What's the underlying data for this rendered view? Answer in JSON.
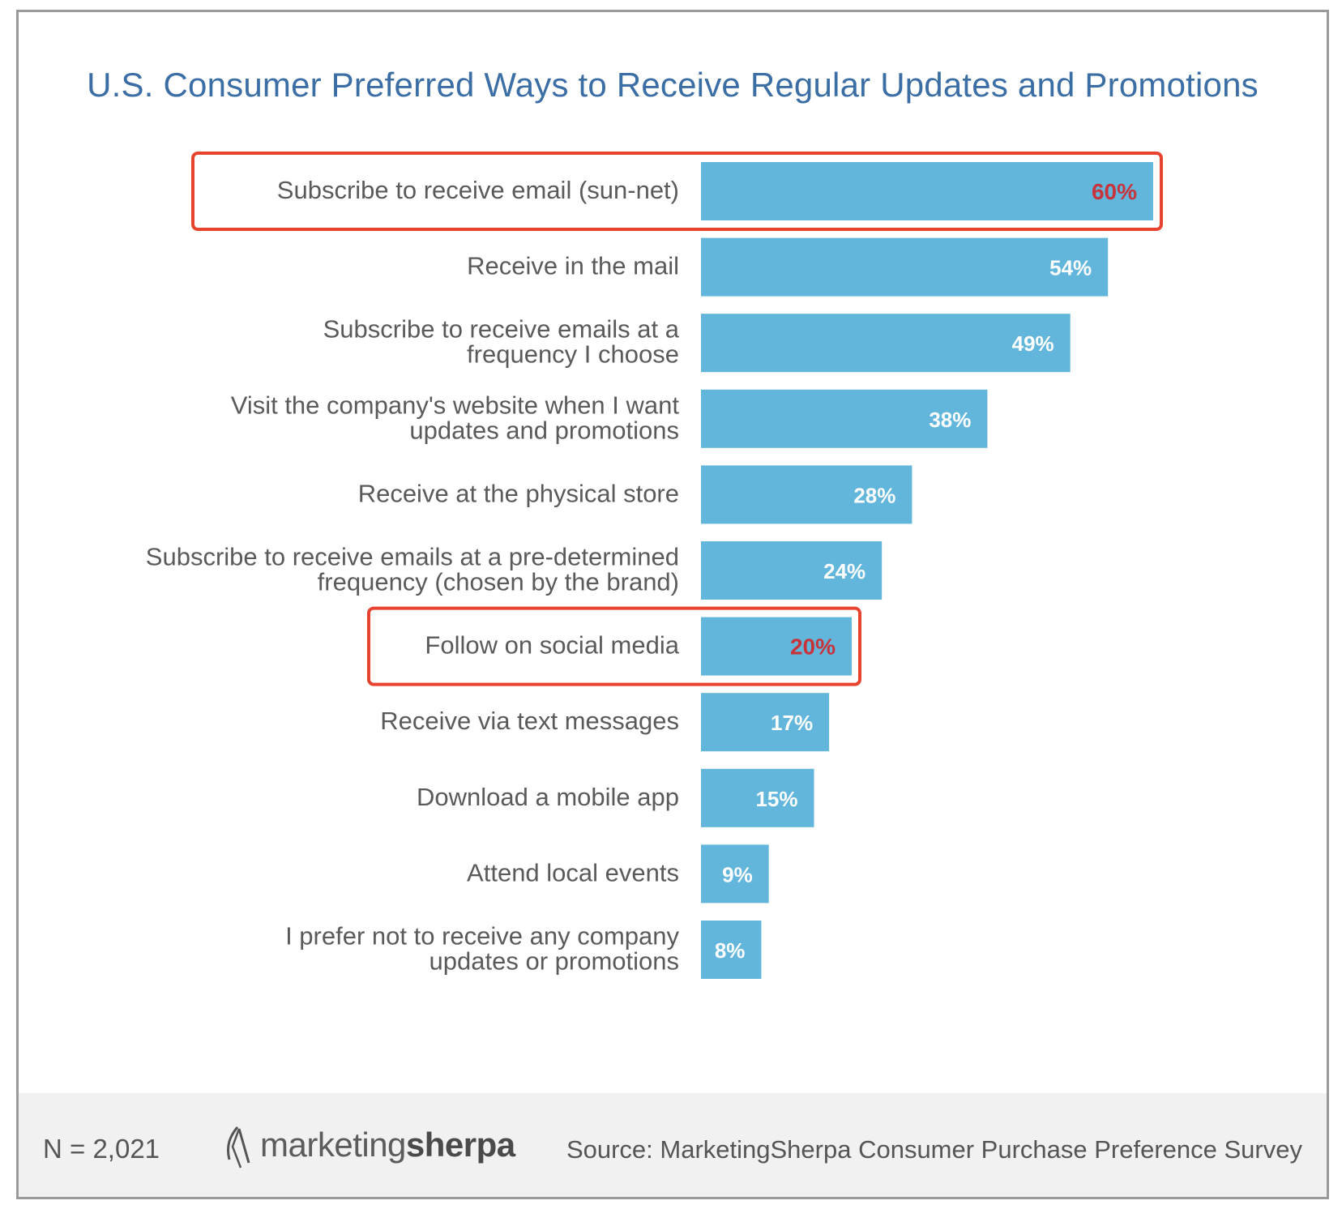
{
  "chart_data": {
    "type": "bar",
    "orientation": "horizontal",
    "title": "U.S. Consumer Preferred Ways to Receive Regular Updates and Promotions",
    "categories": [
      [
        "Subscribe to receive email (sun-net)"
      ],
      [
        "Receive in the mail"
      ],
      [
        "Subscribe to receive emails at a",
        "frequency I choose"
      ],
      [
        "Visit the company's website when I want",
        "updates and promotions"
      ],
      [
        "Receive at the physical store"
      ],
      [
        "Subscribe to receive emails at a pre-determined",
        "frequency (chosen by the brand)"
      ],
      [
        "Follow on social media"
      ],
      [
        "Receive via text messages"
      ],
      [
        "Download a mobile app"
      ],
      [
        "Attend local events"
      ],
      [
        "I prefer not to receive any company",
        "updates or promotions"
      ]
    ],
    "values": [
      60,
      54,
      49,
      38,
      28,
      24,
      20,
      17,
      15,
      9,
      8
    ],
    "value_labels": [
      "60%",
      "54%",
      "49%",
      "38%",
      "28%",
      "24%",
      "20%",
      "17%",
      "15%",
      "9%",
      "8%"
    ],
    "highlighted": [
      0,
      6
    ],
    "xlim": [
      0,
      100
    ],
    "grid": false,
    "legend": "none",
    "colors": {
      "bar": "#62b6db",
      "bar_label": "#ffffff",
      "highlight_label": "#c8323a",
      "highlight_box": "#e8432f",
      "category_label": "#5a5a5a",
      "title": "#3b6ea5"
    }
  },
  "footer": {
    "n_label": "N = 2,021",
    "logo_light": "marketing",
    "logo_bold": "sherpa",
    "source": "Source: MarketingSherpa Consumer Purchase Preference Survey"
  }
}
